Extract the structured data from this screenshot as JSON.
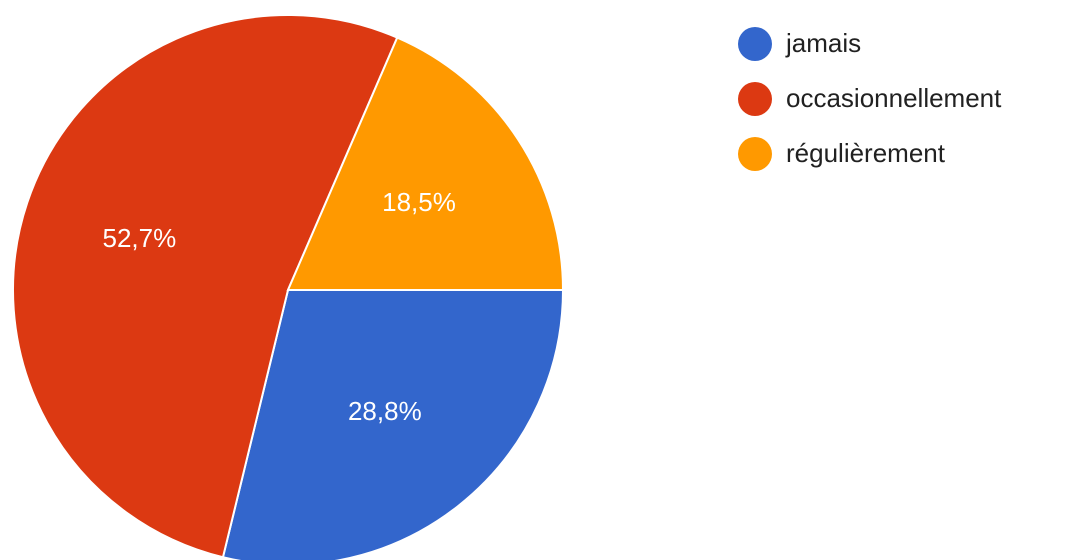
{
  "chart_data": {
    "type": "pie",
    "categories": [
      "jamais",
      "occasionnellement",
      "régulièrement"
    ],
    "values": [
      28.8,
      52.7,
      18.5
    ],
    "value_labels": [
      "28,8%",
      "52,7%",
      "18,5%"
    ],
    "colors": [
      "#3366cc",
      "#dc3912",
      "#ff9900"
    ],
    "legend_position": "top-right",
    "title": ""
  },
  "legend": {
    "items": [
      {
        "label": "jamais",
        "color": "#3366cc"
      },
      {
        "label": "occasionnellement",
        "color": "#dc3912"
      },
      {
        "label": "régulièrement",
        "color": "#ff9900"
      }
    ]
  }
}
